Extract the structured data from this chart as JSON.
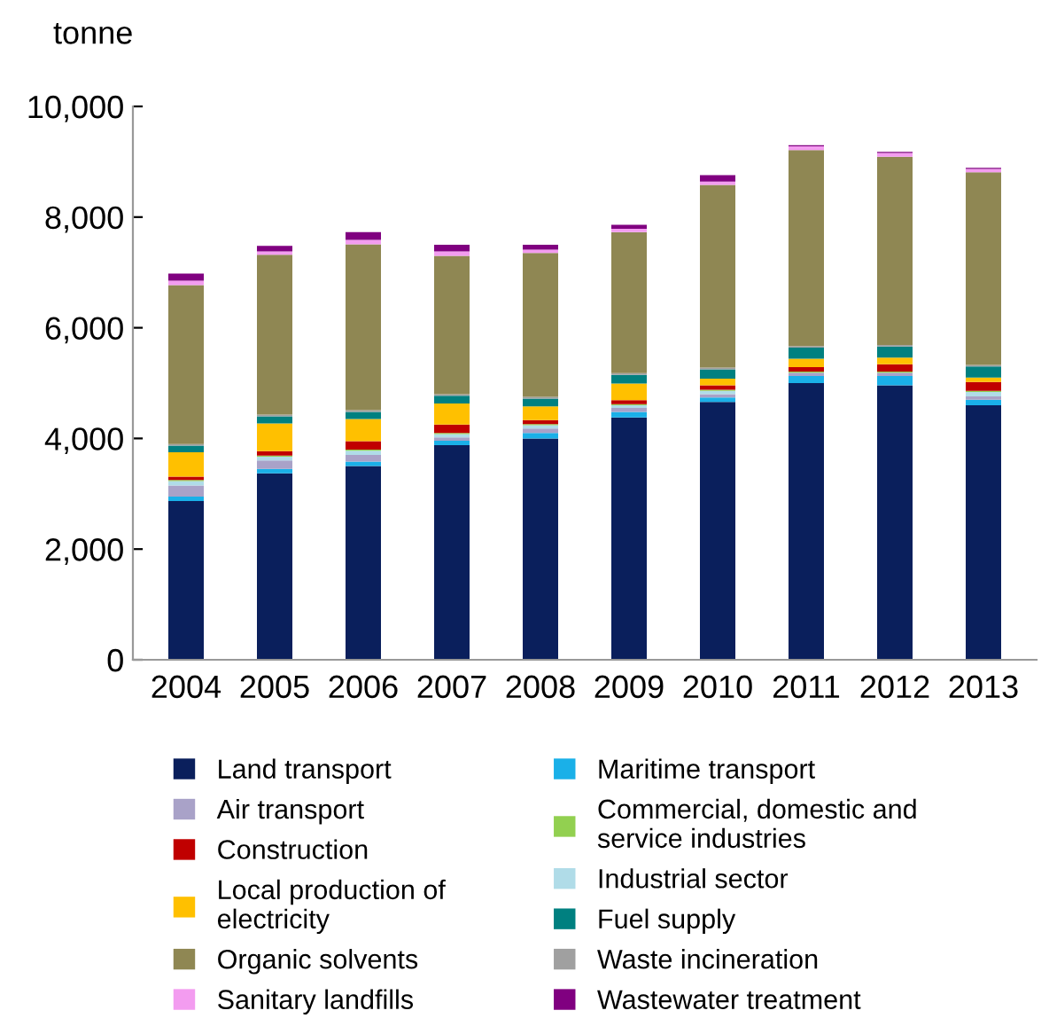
{
  "chart_data": {
    "type": "bar",
    "stacked": true,
    "ylabel": "tonne",
    "categories": [
      "2004",
      "2005",
      "2006",
      "2007",
      "2008",
      "2009",
      "2010",
      "2011",
      "2012",
      "2013"
    ],
    "ylim": [
      0,
      10000
    ],
    "yticks": [
      0,
      {
        "value": 2000,
        "label": "2,000"
      },
      {
        "value": 4000,
        "label": "4,000"
      },
      {
        "value": 6000,
        "label": "6,000"
      },
      {
        "value": 8000,
        "label": "8,000"
      },
      {
        "value": 10000,
        "label": "10,000"
      }
    ],
    "legend": "bottom",
    "series": [
      {
        "name": "Land transport",
        "color": "#0a1f5c",
        "values": [
          2870,
          3370,
          3500,
          3880,
          4000,
          4380,
          4660,
          5000,
          4960,
          4600
        ]
      },
      {
        "name": "Maritime transport",
        "color": "#1ab0e8",
        "values": [
          80,
          80,
          80,
          80,
          100,
          100,
          80,
          130,
          170,
          100
        ]
      },
      {
        "name": "Air transport",
        "color": "#a9a2c8",
        "values": [
          200,
          150,
          120,
          60,
          80,
          70,
          60,
          60,
          60,
          60
        ]
      },
      {
        "name": "Industrial sector",
        "color": "#b0dce8",
        "values": [
          80,
          70,
          80,
          60,
          60,
          50,
          60,
          null,
          null,
          80
        ]
      },
      {
        "name": "Commercial, domestic and\nservice industries",
        "color": "#92d050",
        "values": [
          20,
          20,
          20,
          20,
          20,
          20,
          20,
          20,
          20,
          20
        ]
      },
      {
        "name": "Construction",
        "color": "#c00000",
        "values": [
          60,
          80,
          150,
          150,
          70,
          70,
          80,
          80,
          130,
          160
        ]
      },
      {
        "name": "Local production of\nelectricity",
        "color": "#ffc000",
        "values": [
          440,
          500,
          400,
          380,
          250,
          300,
          120,
          150,
          120,
          80
        ]
      },
      {
        "name": "Fuel supply",
        "color": "#008080",
        "values": [
          120,
          130,
          130,
          140,
          140,
          160,
          170,
          200,
          200,
          200
        ]
      },
      {
        "name": "Waste incineration",
        "color": "#a0a0a0",
        "values": [
          30,
          30,
          30,
          30,
          30,
          30,
          30,
          30,
          30,
          30
        ]
      },
      {
        "name": "Organic solvents",
        "color": "#8f8753",
        "values": [
          2870,
          2890,
          3000,
          2500,
          2600,
          2550,
          3300,
          3540,
          3400,
          3480
        ]
      },
      {
        "name": "Sanitary landfills",
        "color": "#f39cf0",
        "values": [
          80,
          60,
          80,
          80,
          60,
          60,
          60,
          70,
          70,
          60
        ]
      },
      {
        "name": "Wastewater treatment",
        "color": "#800080",
        "values": [
          130,
          100,
          140,
          120,
          90,
          70,
          120,
          20,
          20,
          20
        ]
      }
    ]
  }
}
